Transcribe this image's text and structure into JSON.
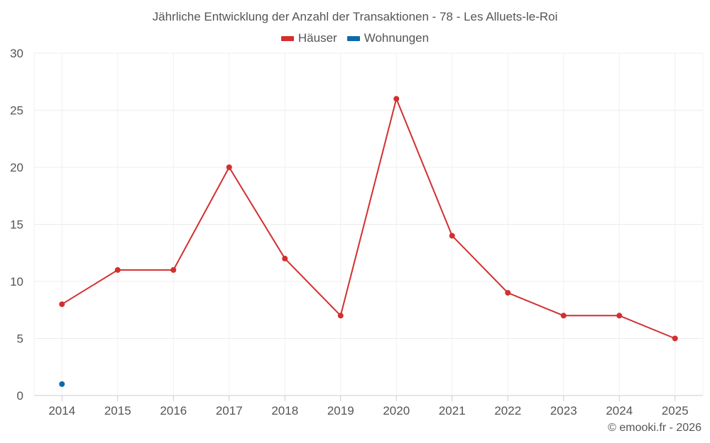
{
  "chart_data": {
    "type": "line",
    "title": "Jährliche Entwicklung der Anzahl der Transaktionen - 78 - Les Alluets-le-Roi",
    "categories": [
      "2014",
      "2015",
      "2016",
      "2017",
      "2018",
      "2019",
      "2020",
      "2021",
      "2022",
      "2023",
      "2024",
      "2025"
    ],
    "series": [
      {
        "name": "Häuser",
        "color": "#d32f2f",
        "values": [
          8,
          11,
          11,
          20,
          12,
          7,
          26,
          14,
          9,
          7,
          7,
          5
        ]
      },
      {
        "name": "Wohnungen",
        "color": "#0d6aa8",
        "values": [
          1,
          null,
          null,
          null,
          null,
          null,
          null,
          null,
          null,
          null,
          null,
          null
        ]
      }
    ],
    "yticks": [
      "0",
      "5",
      "10",
      "15",
      "20",
      "25",
      "30"
    ],
    "ylim": [
      0,
      30
    ],
    "grid": true,
    "legend_position": "top-center"
  },
  "credit": "© emooki.fr - 2026"
}
